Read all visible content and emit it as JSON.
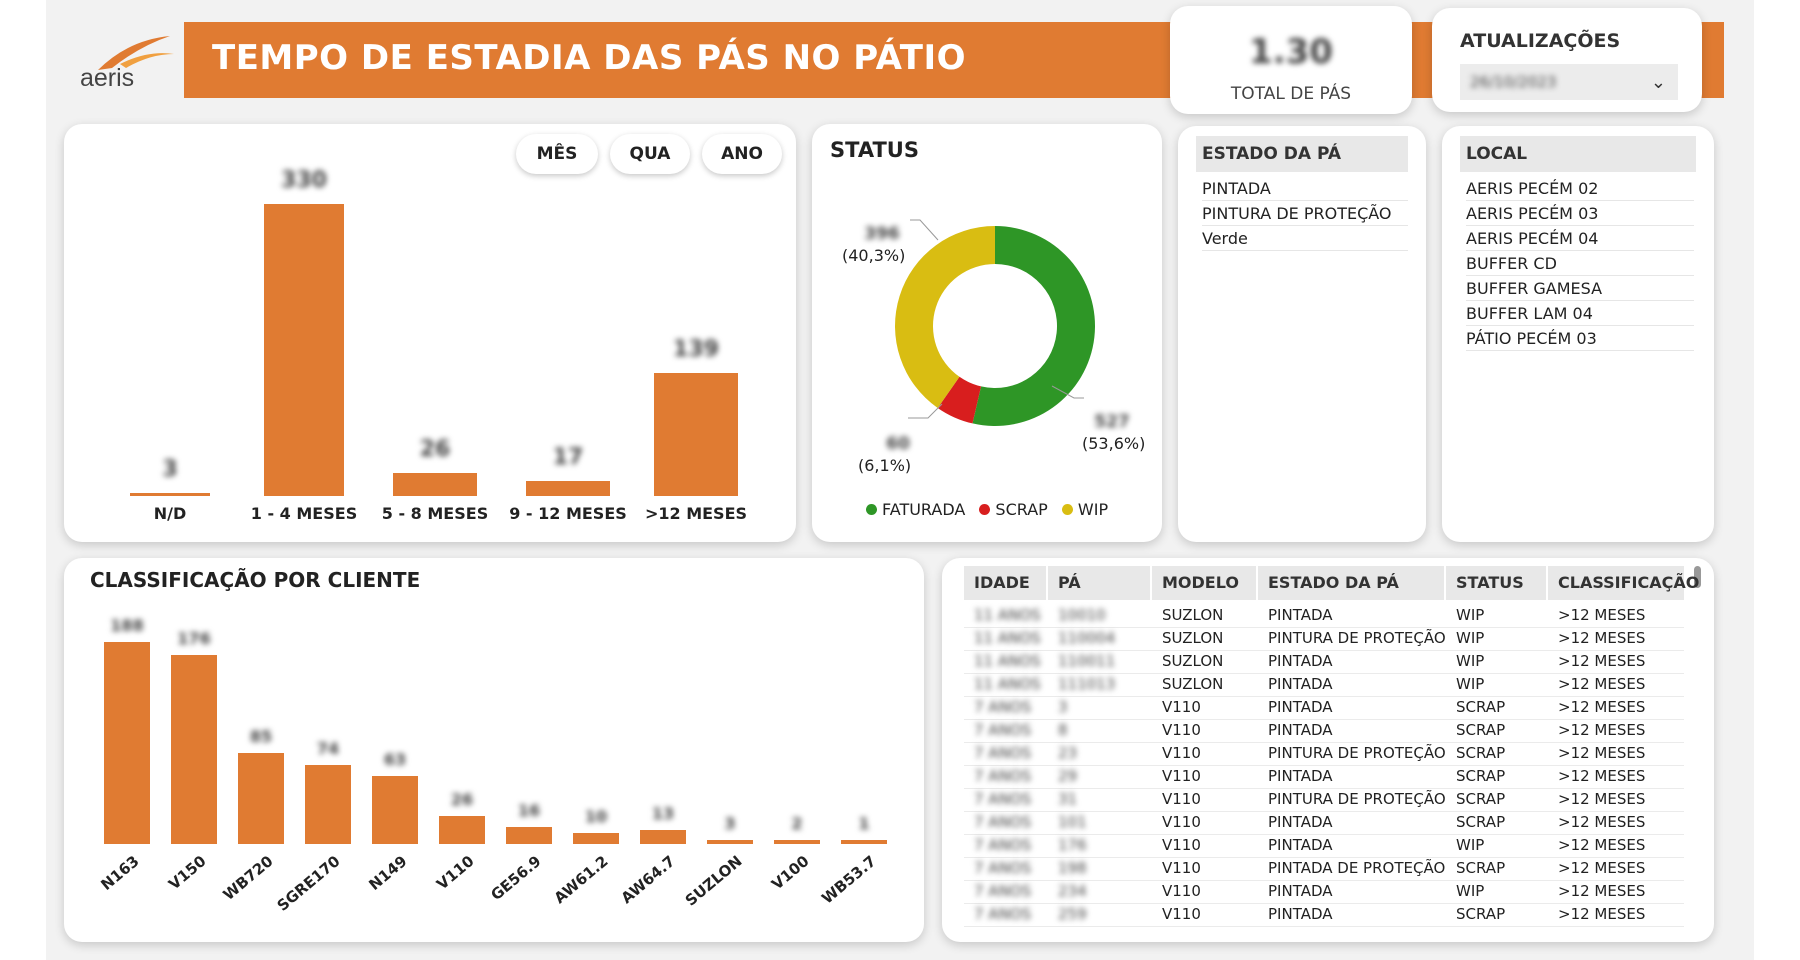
{
  "header": {
    "logo_text": "aeris",
    "title": "TEMPO DE ESTADIA DAS PÁS NO PÁTIO",
    "brand_color": "#e07b32"
  },
  "kpi": {
    "value": "1.30",
    "label": "TOTAL DE PÁS"
  },
  "updates": {
    "title": "ATUALIZAÇÕES",
    "selected": "26/10/2023"
  },
  "stay_chart": {
    "pills": [
      "MÊS",
      "QUA",
      "ANO"
    ],
    "chart_data": {
      "type": "bar",
      "categories": [
        "N/D",
        "1 - 4 MESES",
        "5 - 8 MESES",
        "9 - 12 MESES",
        ">12 MESES"
      ],
      "values": [
        3,
        330,
        26,
        17,
        139
      ],
      "ylim": [
        0,
        330
      ]
    }
  },
  "status": {
    "title": "STATUS",
    "chart_data": {
      "type": "pie",
      "series": [
        {
          "name": "FATURADA",
          "value": 527,
          "pct": "(53,6%)",
          "color": "#2e9626"
        },
        {
          "name": "SCRAP",
          "value": 60,
          "pct": "(6,1%)",
          "color": "#d81e1e"
        },
        {
          "name": "WIP",
          "value": 396,
          "pct": "(40,3%)",
          "color": "#d9bd12"
        }
      ]
    }
  },
  "estado": {
    "header": "ESTADO DA PÁ",
    "items": [
      "PINTADA",
      "PINTURA DE PROTEÇÃO",
      "Verde"
    ]
  },
  "local": {
    "header": "LOCAL",
    "items": [
      "AERIS PECÉM 02",
      "AERIS PECÉM 03",
      "AERIS PECÉM 04",
      "BUFFER CD",
      "BUFFER GAMESA",
      "BUFFER LAM 04",
      "PÁTIO PECÉM 03"
    ]
  },
  "client_chart": {
    "title": "CLASSIFICAÇÃO POR CLIENTE",
    "chart_data": {
      "type": "bar",
      "categories": [
        "N163",
        "V150",
        "WB720",
        "SGRE170",
        "N149",
        "V110",
        "GE56.9",
        "AW61.2",
        "AW64.7",
        "SUZLON",
        "V100",
        "WB53.7"
      ],
      "values": [
        188,
        176,
        85,
        74,
        63,
        26,
        16,
        10,
        13,
        3,
        2,
        1
      ],
      "ylim": [
        0,
        190
      ]
    }
  },
  "table": {
    "columns": [
      "IDADE",
      "PÁ",
      "MODELO",
      "ESTADO DA PÁ",
      "STATUS",
      "CLASSIFICAÇÃO"
    ],
    "rows": [
      [
        "11 ANOS",
        "10010",
        "SUZLON",
        "PINTADA",
        "WIP",
        ">12 MESES"
      ],
      [
        "11 ANOS",
        "110004",
        "SUZLON",
        "PINTURA DE PROTEÇÃO",
        "WIP",
        ">12 MESES"
      ],
      [
        "11 ANOS",
        "110011",
        "SUZLON",
        "PINTADA",
        "WIP",
        ">12 MESES"
      ],
      [
        "11 ANOS",
        "111013",
        "SUZLON",
        "PINTADA",
        "WIP",
        ">12 MESES"
      ],
      [
        "7 ANOS",
        "3",
        "V110",
        "PINTADA",
        "SCRAP",
        ">12 MESES"
      ],
      [
        "7 ANOS",
        "8",
        "V110",
        "PINTADA",
        "SCRAP",
        ">12 MESES"
      ],
      [
        "7 ANOS",
        "23",
        "V110",
        "PINTURA DE PROTEÇÃO",
        "SCRAP",
        ">12 MESES"
      ],
      [
        "7 ANOS",
        "29",
        "V110",
        "PINTADA",
        "SCRAP",
        ">12 MESES"
      ],
      [
        "7 ANOS",
        "31",
        "V110",
        "PINTURA DE PROTEÇÃO",
        "SCRAP",
        ">12 MESES"
      ],
      [
        "7 ANOS",
        "101",
        "V110",
        "PINTADA",
        "SCRAP",
        ">12 MESES"
      ],
      [
        "7 ANOS",
        "176",
        "V110",
        "PINTADA",
        "WIP",
        ">12 MESES"
      ],
      [
        "7 ANOS",
        "198",
        "V110",
        "PINTADA DE PROTEÇÃO",
        "SCRAP",
        ">12 MESES"
      ],
      [
        "7 ANOS",
        "234",
        "V110",
        "PINTADA",
        "WIP",
        ">12 MESES"
      ],
      [
        "7 ANOS",
        "259",
        "V110",
        "PINTADA",
        "SCRAP",
        ">12 MESES"
      ]
    ]
  }
}
